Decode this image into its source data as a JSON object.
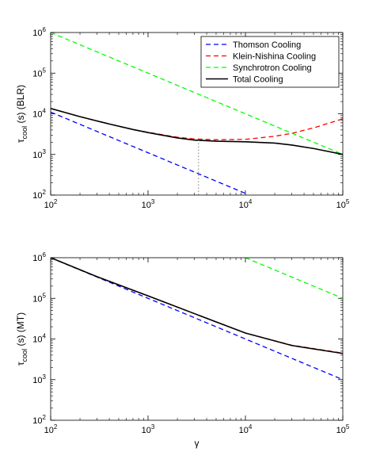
{
  "chart_data": [
    {
      "type": "line",
      "title": "",
      "xlabel": "",
      "ylabel": "τ_cool (s) (BLR)",
      "ylabel_main": "τ",
      "ylabel_sub": "cool",
      "ylabel_rest": " (s) (BLR)",
      "xscale": "log",
      "yscale": "log",
      "xlim": [
        100,
        100000
      ],
      "ylim": [
        100,
        1000000
      ],
      "xticks": [
        {
          "value": 100,
          "base": "10",
          "exp": "2"
        },
        {
          "value": 1000,
          "base": "10",
          "exp": "3"
        },
        {
          "value": 10000,
          "base": "10",
          "exp": "4"
        },
        {
          "value": 100000,
          "base": "10",
          "exp": "5"
        }
      ],
      "yticks": [
        {
          "value": 100,
          "base": "10",
          "exp": "2"
        },
        {
          "value": 1000,
          "base": "10",
          "exp": "3"
        },
        {
          "value": 10000,
          "base": "10",
          "exp": "4"
        },
        {
          "value": 100000,
          "base": "10",
          "exp": "5"
        },
        {
          "value": 1000000,
          "base": "10",
          "exp": "6"
        }
      ],
      "legend_position": "top-right",
      "grid": false,
      "series": [
        {
          "name": "Thomson Cooling",
          "color": "#0000ff",
          "style": "dashed",
          "x": [
            100,
            1000,
            10000
          ],
          "y": [
            11000,
            1100,
            110
          ]
        },
        {
          "name": "Klein-Nishina Cooling",
          "color": "#ff0000",
          "style": "dashed",
          "x": [
            100,
            200,
            400,
            700,
            1000,
            2000,
            3000,
            5000,
            10000,
            20000,
            30000,
            50000,
            100000
          ],
          "y": [
            13500,
            8500,
            5600,
            4100,
            3500,
            2650,
            2400,
            2300,
            2350,
            2800,
            3300,
            4500,
            7500
          ]
        },
        {
          "name": "Synchrotron Cooling",
          "color": "#00ff00",
          "style": "dashed",
          "x": [
            100,
            100000
          ],
          "y": [
            1000000,
            1000
          ]
        },
        {
          "name": "Total Cooling",
          "color": "#000000",
          "style": "solid",
          "x": [
            100,
            200,
            400,
            700,
            1000,
            2000,
            3000,
            5000,
            10000,
            20000,
            30000,
            50000,
            100000
          ],
          "y": [
            13500,
            8500,
            5600,
            4100,
            3450,
            2550,
            2250,
            2120,
            2050,
            1900,
            1700,
            1400,
            1000
          ]
        }
      ],
      "vline": {
        "x": 3300,
        "y_from": 100,
        "y_to": 2250,
        "color": "#808080",
        "style": "dotted"
      }
    },
    {
      "type": "line",
      "title": "",
      "xlabel": "γ",
      "ylabel": "τ_cool (s) (MT)",
      "ylabel_main": "τ",
      "ylabel_sub": "cool",
      "ylabel_rest": " (s) (MT)",
      "xscale": "log",
      "yscale": "log",
      "xlim": [
        100,
        100000
      ],
      "ylim": [
        100,
        1000000
      ],
      "xticks": [
        {
          "value": 100,
          "base": "10",
          "exp": "2"
        },
        {
          "value": 1000,
          "base": "10",
          "exp": "3"
        },
        {
          "value": 10000,
          "base": "10",
          "exp": "4"
        },
        {
          "value": 100000,
          "base": "10",
          "exp": "5"
        }
      ],
      "yticks": [
        {
          "value": 100,
          "base": "10",
          "exp": "2"
        },
        {
          "value": 1000,
          "base": "10",
          "exp": "3"
        },
        {
          "value": 10000,
          "base": "10",
          "exp": "4"
        },
        {
          "value": 100000,
          "base": "10",
          "exp": "5"
        },
        {
          "value": 1000000,
          "base": "10",
          "exp": "6"
        }
      ],
      "grid": false,
      "series": [
        {
          "name": "Thomson Cooling",
          "color": "#0000ff",
          "style": "dashed",
          "x": [
            100,
            1000,
            10000,
            100000
          ],
          "y": [
            1000000,
            100000,
            10000,
            1000
          ]
        },
        {
          "name": "Klein-Nishina Cooling",
          "color": "#ff0000",
          "style": "dashed",
          "x": [
            100,
            300,
            1000,
            3000,
            10000,
            30000,
            100000
          ],
          "y": [
            1000000,
            340000,
            115000,
            42000,
            14000,
            7000,
            4500
          ]
        },
        {
          "name": "Synchrotron Cooling",
          "color": "#00ff00",
          "style": "dashed",
          "x": [
            10000,
            100000
          ],
          "y": [
            1000000,
            100000
          ]
        },
        {
          "name": "Total Cooling",
          "color": "#000000",
          "style": "solid",
          "x": [
            100,
            300,
            1000,
            3000,
            10000,
            30000,
            100000
          ],
          "y": [
            1000000,
            340000,
            115000,
            42000,
            14000,
            6900,
            4400
          ]
        }
      ]
    }
  ]
}
